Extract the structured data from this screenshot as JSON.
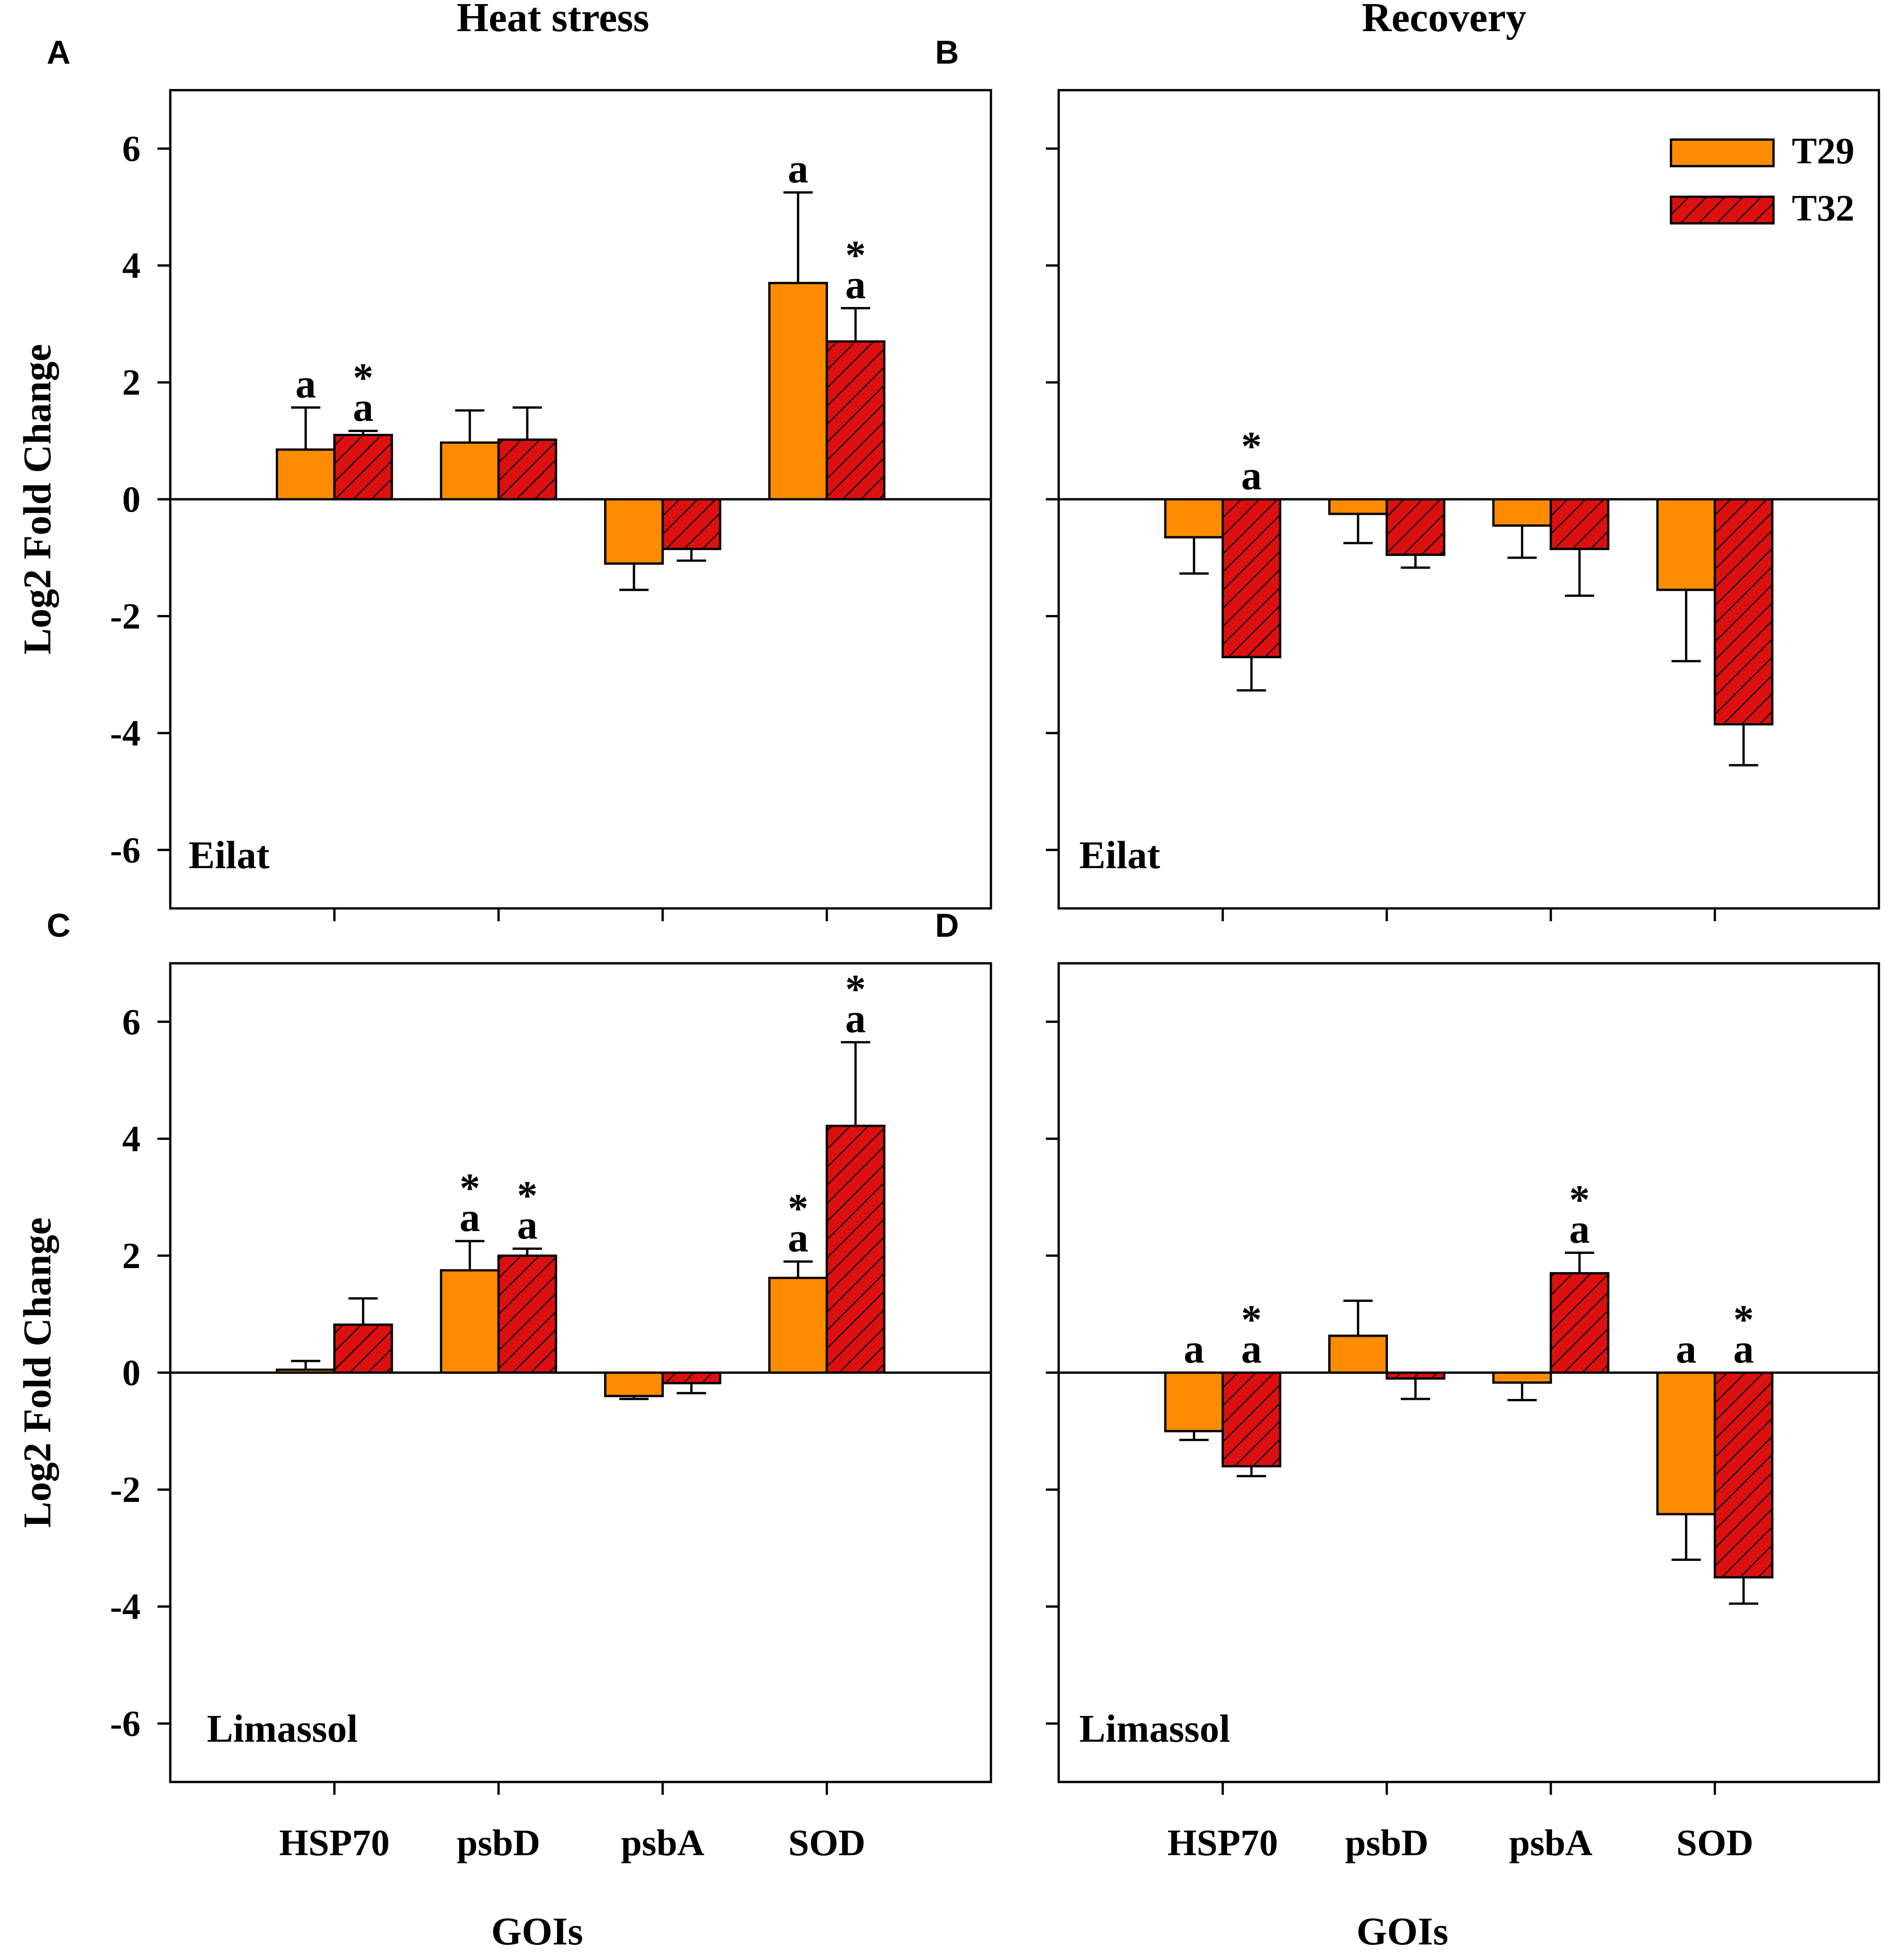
{
  "figure": {
    "colors": {
      "T29": "#ff8c00",
      "T32": "#dd1010",
      "hatch": "#000000"
    },
    "column_titles": [
      "Heat stress",
      "Recovery"
    ],
    "legend": [
      "T29",
      "T32"
    ]
  },
  "chart_data": [
    {
      "type": "bar",
      "panel_letter": "A",
      "site": "Eilat",
      "title": "Heat stress",
      "ylabel": "Log2 Fold Change",
      "xlabel": "",
      "ylim": [
        -7,
        7
      ],
      "yticks": [
        6,
        4,
        2,
        0,
        -2,
        -4,
        -6
      ],
      "show_tick_labels": true,
      "show_category_labels": false,
      "categories": [
        "HSP70",
        "psbD",
        "psbA",
        "SOD"
      ],
      "series": [
        {
          "name": "T29",
          "values": [
            0.85,
            0.97,
            -1.1,
            3.7
          ],
          "errors": [
            0.72,
            0.55,
            0.45,
            1.55
          ],
          "labels": [
            "a",
            "",
            "",
            "a"
          ]
        },
        {
          "name": "T32",
          "values": [
            1.1,
            1.02,
            -0.85,
            2.7
          ],
          "errors": [
            0.07,
            0.55,
            0.2,
            0.57
          ],
          "labels": [
            "*\na",
            "",
            "",
            "*\na"
          ]
        }
      ]
    },
    {
      "type": "bar",
      "panel_letter": "B",
      "site": "Eilat",
      "title": "Recovery",
      "ylabel": "",
      "xlabel": "",
      "ylim": [
        -7,
        7
      ],
      "yticks": [
        6,
        4,
        2,
        0,
        -2,
        -4,
        -6
      ],
      "show_tick_labels": false,
      "show_category_labels": false,
      "legend": true,
      "categories": [
        "HSP70",
        "psbD",
        "psbA",
        "SOD"
      ],
      "series": [
        {
          "name": "T29",
          "values": [
            -0.65,
            -0.25,
            -0.45,
            -1.55
          ],
          "errors": [
            0.62,
            0.5,
            0.55,
            1.22
          ],
          "labels": [
            "",
            "",
            "",
            ""
          ]
        },
        {
          "name": "T32",
          "values": [
            -2.7,
            -0.95,
            -0.85,
            -3.85
          ],
          "errors": [
            0.57,
            0.22,
            0.8,
            0.7
          ],
          "labels": [
            "*\na",
            "",
            "",
            ""
          ]
        }
      ]
    },
    {
      "type": "bar",
      "panel_letter": "C",
      "site": "Limassol",
      "title": "",
      "ylabel": "Log2 Fold Change",
      "xlabel": "GOIs",
      "ylim": [
        -7,
        7
      ],
      "yticks": [
        6,
        4,
        2,
        0,
        -2,
        -4,
        -6
      ],
      "show_tick_labels": true,
      "show_category_labels": true,
      "categories": [
        "HSP70",
        "psbD",
        "psbA",
        "SOD"
      ],
      "series": [
        {
          "name": "T29",
          "values": [
            0.05,
            1.75,
            -0.4,
            1.62
          ],
          "errors": [
            0.15,
            0.5,
            0.05,
            0.28
          ],
          "labels": [
            "",
            "*\na",
            "",
            "*\na"
          ]
        },
        {
          "name": "T32",
          "values": [
            0.82,
            2.0,
            -0.18,
            4.22
          ],
          "errors": [
            0.45,
            0.12,
            0.17,
            1.43
          ],
          "labels": [
            "",
            "*\na",
            "",
            "*\na"
          ]
        }
      ]
    },
    {
      "type": "bar",
      "panel_letter": "D",
      "site": "Limassol",
      "title": "",
      "ylabel": "",
      "xlabel": "GOIs",
      "ylim": [
        -7,
        7
      ],
      "yticks": [
        6,
        4,
        2,
        0,
        -2,
        -4,
        -6
      ],
      "show_tick_labels": false,
      "show_category_labels": true,
      "categories": [
        "HSP70",
        "psbD",
        "psbA",
        "SOD"
      ],
      "series": [
        {
          "name": "T29",
          "values": [
            -1.0,
            0.63,
            -0.17,
            -2.42
          ],
          "errors": [
            0.15,
            0.6,
            0.3,
            0.78
          ],
          "labels": [
            "a",
            "",
            "",
            "a"
          ]
        },
        {
          "name": "T32",
          "values": [
            -1.6,
            -0.1,
            1.7,
            -3.5
          ],
          "errors": [
            0.17,
            0.35,
            0.35,
            0.45
          ],
          "labels": [
            "*\na",
            "",
            "*\na",
            "*\na"
          ]
        }
      ]
    }
  ]
}
